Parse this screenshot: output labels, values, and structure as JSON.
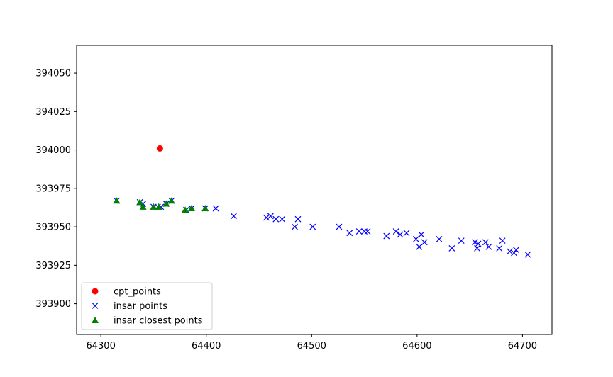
{
  "chart_data": {
    "type": "scatter",
    "title": "",
    "xlabel": "",
    "ylabel": "",
    "xlim": [
      64277,
      64728
    ],
    "ylim": [
      393880,
      394068
    ],
    "xticks": [
      64300,
      64400,
      64500,
      64600,
      64700
    ],
    "yticks": [
      393900,
      393925,
      393950,
      393975,
      394000,
      394025,
      394050
    ],
    "grid": false,
    "legend_position": "lower-left",
    "series": [
      {
        "name": "cpt_points",
        "marker": "circle",
        "color": "#ff0000",
        "points": [
          [
            64356,
            394001
          ]
        ]
      },
      {
        "name": "insar points",
        "marker": "x",
        "color": "#0000ff",
        "points": [
          [
            64315,
            393967
          ],
          [
            64337,
            393966
          ],
          [
            64340,
            393965
          ],
          [
            64350,
            393963
          ],
          [
            64354,
            393963
          ],
          [
            64357,
            393963
          ],
          [
            64362,
            393965
          ],
          [
            64367,
            393967
          ],
          [
            64381,
            393961
          ],
          [
            64386,
            393962
          ],
          [
            64399,
            393962
          ],
          [
            64409,
            393962
          ],
          [
            64426,
            393957
          ],
          [
            64457,
            393956
          ],
          [
            64461,
            393957
          ],
          [
            64466,
            393955
          ],
          [
            64472,
            393955
          ],
          [
            64484,
            393950
          ],
          [
            64487,
            393955
          ],
          [
            64501,
            393950
          ],
          [
            64526,
            393950
          ],
          [
            64536,
            393946
          ],
          [
            64545,
            393947
          ],
          [
            64550,
            393947
          ],
          [
            64553,
            393947
          ],
          [
            64571,
            393944
          ],
          [
            64580,
            393947
          ],
          [
            64584,
            393945
          ],
          [
            64590,
            393946
          ],
          [
            64599,
            393942
          ],
          [
            64602,
            393937
          ],
          [
            64604,
            393945
          ],
          [
            64607,
            393940
          ],
          [
            64621,
            393942
          ],
          [
            64633,
            393936
          ],
          [
            64642,
            393941
          ],
          [
            64655,
            393940
          ],
          [
            64657,
            393936
          ],
          [
            64658,
            393939
          ],
          [
            64665,
            393940
          ],
          [
            64668,
            393937
          ],
          [
            64678,
            393936
          ],
          [
            64681,
            393941
          ],
          [
            64688,
            393934
          ],
          [
            64692,
            393933
          ],
          [
            64694,
            393935
          ],
          [
            64705,
            393932
          ]
        ]
      },
      {
        "name": "insar closest points",
        "marker": "triangle",
        "color": "#008000",
        "points": [
          [
            64315,
            393967
          ],
          [
            64337,
            393966
          ],
          [
            64340,
            393963
          ],
          [
            64350,
            393963
          ],
          [
            64355,
            393963
          ],
          [
            64362,
            393965
          ],
          [
            64367,
            393967
          ],
          [
            64380,
            393961
          ],
          [
            64386,
            393962
          ],
          [
            64399,
            393962
          ]
        ]
      }
    ]
  }
}
